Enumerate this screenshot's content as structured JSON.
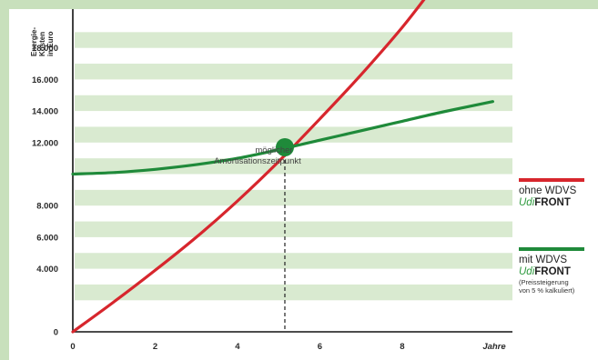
{
  "colors": {
    "frame": "#c8e0bc",
    "band": "#d9ead0",
    "red": "#d7262d",
    "green": "#1f8a3a",
    "brand_green": "#2e9a3e"
  },
  "chart_data": {
    "type": "line",
    "ylabel": [
      "Energie-",
      "Kosten",
      "in Euro"
    ],
    "xlabel": "Jahre",
    "xlim": [
      0,
      10.5
    ],
    "ylim": [
      0,
      20000
    ],
    "x_ticks": [
      {
        "value": 0,
        "label": "0"
      },
      {
        "value": 2,
        "label": "2"
      },
      {
        "value": 4,
        "label": "4"
      },
      {
        "value": 6,
        "label": "6"
      },
      {
        "value": 8,
        "label": "8"
      }
    ],
    "y_ticks": [
      {
        "value": 0,
        "label": "0"
      },
      {
        "value": 4000,
        "label": "4.000"
      },
      {
        "value": 6000,
        "label": "6.000"
      },
      {
        "value": 8000,
        "label": "8.000"
      },
      {
        "value": 12000,
        "label": "12.000"
      },
      {
        "value": 14000,
        "label": "14.000"
      },
      {
        "value": 16000,
        "label": "16.000"
      },
      {
        "value": 18000,
        "label": "18.000"
      }
    ],
    "grid_bands": [
      [
        2000,
        3000
      ],
      [
        4000,
        5000
      ],
      [
        6000,
        7000
      ],
      [
        8000,
        9000
      ],
      [
        10000,
        11000
      ],
      [
        12000,
        13000
      ],
      [
        14000,
        15000
      ],
      [
        16000,
        17000
      ],
      [
        18000,
        19000
      ]
    ],
    "series": [
      {
        "key": "ohne",
        "color": "#d7262d",
        "x": [
          0,
          1,
          2,
          3,
          4,
          5,
          6,
          7,
          8,
          8.8
        ],
        "y": [
          0,
          1900,
          3900,
          6000,
          8300,
          10800,
          13500,
          16300,
          19300,
          22000
        ]
      },
      {
        "key": "mit",
        "color": "#1f8a3a",
        "x": [
          0,
          1,
          2,
          3,
          4,
          5,
          6,
          7,
          8,
          9,
          10.2
        ],
        "y": [
          10000,
          10100,
          10300,
          10600,
          11000,
          11550,
          12150,
          12750,
          13350,
          13950,
          14600
        ]
      }
    ],
    "marker": {
      "x": 5.15,
      "y": 11700,
      "color": "#1f8a3a"
    },
    "annotation": [
      "möglicher",
      "Amortisationszeitpunkt"
    ]
  },
  "legend": {
    "ohne": {
      "line1": "ohne WDVS",
      "brand_udi": "Udi",
      "brand_front": "FRONT"
    },
    "mit": {
      "line1": "mit WDVS",
      "brand_udi": "Udi",
      "brand_front": "FRONT",
      "note1": "(Preissteigerung",
      "note2": "von 5 % kalkuliert)"
    }
  }
}
